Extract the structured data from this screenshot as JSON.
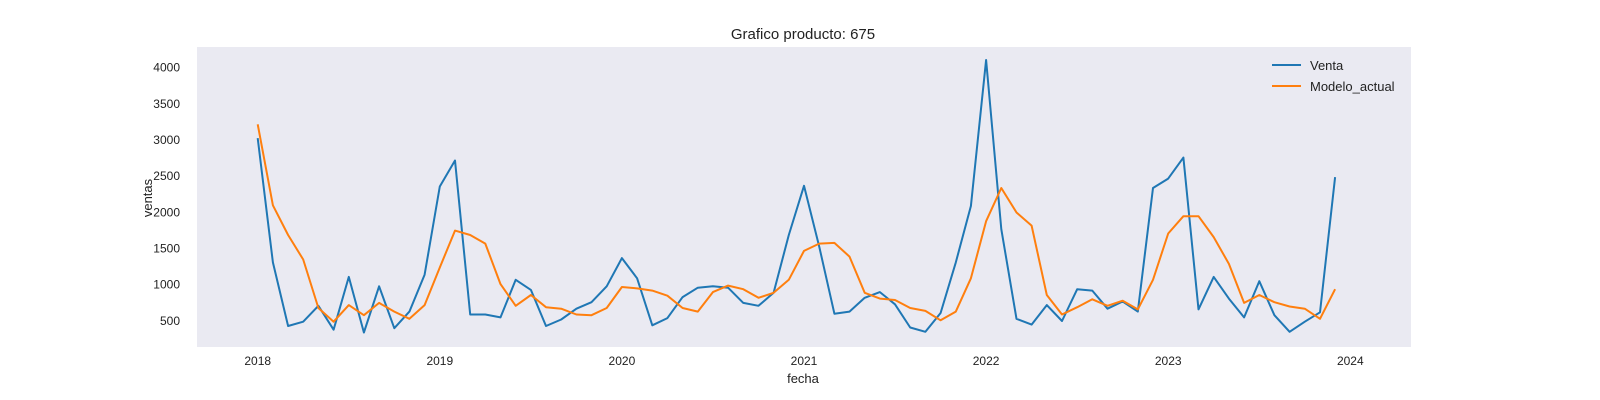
{
  "chart_data": {
    "type": "line",
    "title": "Grafico producto: 675",
    "xlabel": "fecha",
    "ylabel": "ventas",
    "x_ticks": [
      "2018",
      "2019",
      "2020",
      "2021",
      "2022",
      "2023",
      "2024"
    ],
    "y_ticks": [
      500,
      1000,
      1500,
      2000,
      2500,
      3000,
      3500,
      4000
    ],
    "xlim": [
      "2017-09",
      "2024-05"
    ],
    "ylim": [
      130,
      4280
    ],
    "grid": false,
    "legend": "top-right",
    "x": [
      "2018-01",
      "2018-02",
      "2018-03",
      "2018-04",
      "2018-05",
      "2018-06",
      "2018-07",
      "2018-08",
      "2018-09",
      "2018-10",
      "2018-11",
      "2018-12",
      "2019-01",
      "2019-02",
      "2019-03",
      "2019-04",
      "2019-05",
      "2019-06",
      "2019-07",
      "2019-08",
      "2019-09",
      "2019-10",
      "2019-11",
      "2019-12",
      "2020-01",
      "2020-02",
      "2020-03",
      "2020-04",
      "2020-05",
      "2020-06",
      "2020-07",
      "2020-08",
      "2020-09",
      "2020-10",
      "2020-11",
      "2020-12",
      "2021-01",
      "2021-02",
      "2021-03",
      "2021-04",
      "2021-05",
      "2021-06",
      "2021-07",
      "2021-08",
      "2021-09",
      "2021-10",
      "2021-11",
      "2021-12",
      "2022-01",
      "2022-02",
      "2022-03",
      "2022-04",
      "2022-05",
      "2022-06",
      "2022-07",
      "2022-08",
      "2022-09",
      "2022-10",
      "2022-11",
      "2022-12",
      "2023-01",
      "2023-02",
      "2023-03",
      "2023-04",
      "2023-05",
      "2023-06",
      "2023-07",
      "2023-08",
      "2023-09",
      "2023-10",
      "2023-11",
      "2023-12"
    ],
    "series": [
      {
        "name": "Venta",
        "color": "#1f77b4",
        "values": [
          3020,
          1300,
          420,
          480,
          700,
          370,
          1100,
          330,
          970,
          390,
          620,
          1130,
          2350,
          2710,
          580,
          580,
          540,
          1060,
          920,
          420,
          510,
          660,
          750,
          970,
          1360,
          1080,
          430,
          530,
          820,
          950,
          970,
          950,
          740,
          700,
          880,
          1680,
          2360,
          1520,
          590,
          620,
          810,
          890,
          720,
          400,
          340,
          600,
          1300,
          2080,
          4100,
          1760,
          520,
          440,
          710,
          490,
          930,
          910,
          660,
          760,
          620,
          2330,
          2460,
          2750,
          650,
          1100,
          800,
          540,
          1040,
          570,
          340,
          480,
          610,
          2480
        ]
      },
      {
        "name": "Modelo_actual",
        "color": "#ff7f0e",
        "values": [
          3210,
          2090,
          1680,
          1340,
          670,
          480,
          710,
          570,
          740,
          620,
          520,
          710,
          1230,
          1740,
          1680,
          1560,
          1000,
          700,
          850,
          680,
          660,
          580,
          570,
          670,
          960,
          940,
          910,
          840,
          670,
          620,
          890,
          980,
          930,
          810,
          880,
          1060,
          1460,
          1560,
          1570,
          1380,
          880,
          800,
          780,
          670,
          630,
          500,
          620,
          1080,
          1870,
          2330,
          1990,
          1810,
          850,
          580,
          680,
          790,
          700,
          770,
          650,
          1060,
          1700,
          1940,
          1940,
          1650,
          1280,
          740,
          850,
          750,
          690,
          660,
          520,
          930
        ]
      }
    ]
  }
}
